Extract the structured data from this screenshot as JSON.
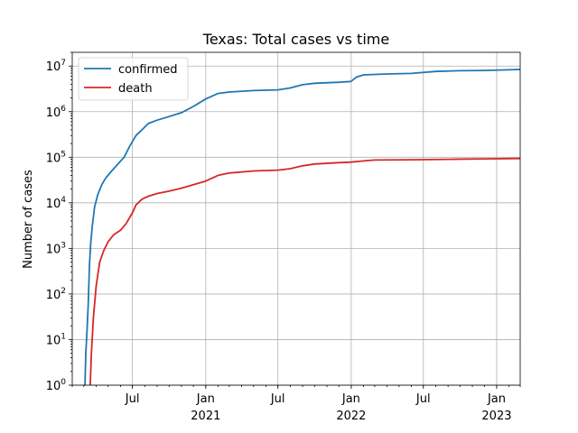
{
  "chart_data": {
    "type": "line",
    "title": "Texas: Total cases vs time",
    "xlabel": "",
    "ylabel": "Number of cases",
    "yscale": "log",
    "ylim": [
      1,
      20000000
    ],
    "xlim": [
      "2020-02-01",
      "2023-03-01"
    ],
    "grid": true,
    "legend_position": "top-left",
    "y_ticks": [
      {
        "value": 1,
        "base": "10",
        "exp": "0"
      },
      {
        "value": 10,
        "base": "10",
        "exp": "1"
      },
      {
        "value": 100,
        "base": "10",
        "exp": "2"
      },
      {
        "value": 1000,
        "base": "10",
        "exp": "3"
      },
      {
        "value": 10000,
        "base": "10",
        "exp": "4"
      },
      {
        "value": 100000,
        "base": "10",
        "exp": "5"
      },
      {
        "value": 1000000,
        "base": "10",
        "exp": "6"
      },
      {
        "value": 10000000,
        "base": "10",
        "exp": "7"
      }
    ],
    "x_ticks": [
      {
        "date": "2020-07-01",
        "label": "Jul",
        "year": ""
      },
      {
        "date": "2021-01-01",
        "label": "Jan",
        "year": "2021"
      },
      {
        "date": "2021-07-01",
        "label": "Jul",
        "year": ""
      },
      {
        "date": "2022-01-01",
        "label": "Jan",
        "year": "2022"
      },
      {
        "date": "2022-07-01",
        "label": "Jul",
        "year": ""
      },
      {
        "date": "2023-01-01",
        "label": "Jan",
        "year": "2023"
      }
    ],
    "series": [
      {
        "name": "confirmed",
        "color": "#1f77b4",
        "points": [
          [
            "2020-03-04",
            1
          ],
          [
            "2020-03-06",
            5
          ],
          [
            "2020-03-09",
            15
          ],
          [
            "2020-03-12",
            60
          ],
          [
            "2020-03-15",
            400
          ],
          [
            "2020-03-18",
            1200
          ],
          [
            "2020-03-22",
            3000
          ],
          [
            "2020-03-28",
            8000
          ],
          [
            "2020-04-05",
            15000
          ],
          [
            "2020-04-15",
            25000
          ],
          [
            "2020-04-25",
            35000
          ],
          [
            "2020-05-10",
            50000
          ],
          [
            "2020-05-25",
            70000
          ],
          [
            "2020-06-10",
            100000
          ],
          [
            "2020-06-25",
            180000
          ],
          [
            "2020-07-10",
            300000
          ],
          [
            "2020-07-25",
            400000
          ],
          [
            "2020-08-10",
            550000
          ],
          [
            "2020-09-01",
            650000
          ],
          [
            "2020-10-01",
            780000
          ],
          [
            "2020-11-01",
            950000
          ],
          [
            "2020-12-01",
            1300000
          ],
          [
            "2021-01-01",
            1900000
          ],
          [
            "2021-02-01",
            2500000
          ],
          [
            "2021-03-01",
            2700000
          ],
          [
            "2021-05-01",
            2900000
          ],
          [
            "2021-07-01",
            3000000
          ],
          [
            "2021-08-01",
            3300000
          ],
          [
            "2021-09-01",
            3900000
          ],
          [
            "2021-10-01",
            4200000
          ],
          [
            "2021-12-01",
            4400000
          ],
          [
            "2021-12-31",
            4600000
          ],
          [
            "2022-01-15",
            5800000
          ],
          [
            "2022-02-01",
            6400000
          ],
          [
            "2022-04-01",
            6700000
          ],
          [
            "2022-06-01",
            6900000
          ],
          [
            "2022-08-01",
            7600000
          ],
          [
            "2022-10-01",
            7900000
          ],
          [
            "2022-12-01",
            8000000
          ],
          [
            "2023-03-01",
            8400000
          ]
        ]
      },
      {
        "name": "death",
        "color": "#d62728",
        "points": [
          [
            "2020-03-17",
            1
          ],
          [
            "2020-03-20",
            5
          ],
          [
            "2020-03-25",
            30
          ],
          [
            "2020-04-01",
            150
          ],
          [
            "2020-04-10",
            500
          ],
          [
            "2020-04-20",
            900
          ],
          [
            "2020-05-01",
            1400
          ],
          [
            "2020-05-15",
            2000
          ],
          [
            "2020-06-01",
            2500
          ],
          [
            "2020-06-15",
            3500
          ],
          [
            "2020-07-01",
            6000
          ],
          [
            "2020-07-10",
            9000
          ],
          [
            "2020-07-25",
            12000
          ],
          [
            "2020-08-10",
            14000
          ],
          [
            "2020-09-01",
            16000
          ],
          [
            "2020-10-01",
            18000
          ],
          [
            "2020-11-01",
            21000
          ],
          [
            "2020-12-01",
            25000
          ],
          [
            "2021-01-01",
            30000
          ],
          [
            "2021-02-01",
            40000
          ],
          [
            "2021-03-01",
            45000
          ],
          [
            "2021-05-01",
            50000
          ],
          [
            "2021-07-01",
            52000
          ],
          [
            "2021-08-01",
            56000
          ],
          [
            "2021-09-01",
            65000
          ],
          [
            "2021-10-01",
            71000
          ],
          [
            "2021-12-01",
            76000
          ],
          [
            "2022-01-01",
            78000
          ],
          [
            "2022-02-01",
            83000
          ],
          [
            "2022-03-01",
            87000
          ],
          [
            "2022-06-01",
            88000
          ],
          [
            "2022-09-01",
            90000
          ],
          [
            "2022-12-01",
            92000
          ],
          [
            "2023-03-01",
            94000
          ]
        ]
      }
    ]
  }
}
